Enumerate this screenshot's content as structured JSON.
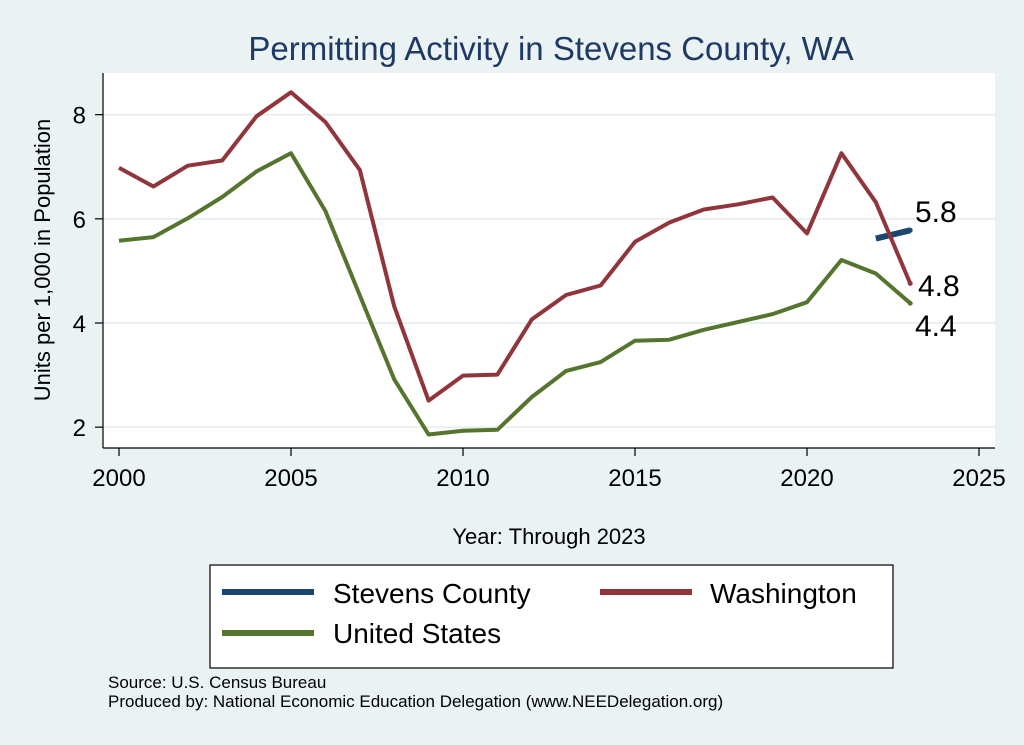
{
  "chart_data": {
    "type": "line",
    "title": "Permitting Activity in Stevens County, WA",
    "xlabel": "Year: Through 2023",
    "ylabel": "Units per 1,000 in Population",
    "xlim": [
      2000,
      2025
    ],
    "ylim": [
      1.6,
      8.8
    ],
    "xticks": [
      2000,
      2005,
      2010,
      2015,
      2020,
      2025
    ],
    "yticks": [
      2,
      4,
      6,
      8
    ],
    "grid": true,
    "legend_position": "bottom",
    "series": [
      {
        "name": "Stevens County",
        "color": "#1a476f",
        "points": [
          [
            2022,
            5.62
          ],
          [
            2023,
            5.78
          ]
        ],
        "end_label": "5.8"
      },
      {
        "name": "Washington",
        "color": "#90353b",
        "points": [
          [
            2000,
            6.98
          ],
          [
            2001,
            6.62
          ],
          [
            2002,
            7.02
          ],
          [
            2003,
            7.12
          ],
          [
            2004,
            7.97
          ],
          [
            2005,
            8.43
          ],
          [
            2006,
            7.86
          ],
          [
            2007,
            6.94
          ],
          [
            2008,
            4.32
          ],
          [
            2009,
            2.51
          ],
          [
            2010,
            2.99
          ],
          [
            2011,
            3.01
          ],
          [
            2012,
            4.07
          ],
          [
            2013,
            4.54
          ],
          [
            2014,
            4.72
          ],
          [
            2015,
            5.56
          ],
          [
            2016,
            5.93
          ],
          [
            2017,
            6.18
          ],
          [
            2018,
            6.28
          ],
          [
            2019,
            6.41
          ],
          [
            2020,
            5.72
          ],
          [
            2021,
            7.26
          ],
          [
            2022,
            6.32
          ],
          [
            2023,
            4.76
          ]
        ],
        "end_label": "4.8"
      },
      {
        "name": "United States",
        "color": "#55752f",
        "points": [
          [
            2000,
            5.58
          ],
          [
            2001,
            5.65
          ],
          [
            2002,
            6.01
          ],
          [
            2003,
            6.42
          ],
          [
            2004,
            6.91
          ],
          [
            2005,
            7.26
          ],
          [
            2006,
            6.15
          ],
          [
            2007,
            4.53
          ],
          [
            2008,
            2.92
          ],
          [
            2009,
            1.86
          ],
          [
            2010,
            1.93
          ],
          [
            2011,
            1.95
          ],
          [
            2012,
            2.58
          ],
          [
            2013,
            3.08
          ],
          [
            2014,
            3.25
          ],
          [
            2015,
            3.66
          ],
          [
            2016,
            3.68
          ],
          [
            2017,
            3.87
          ],
          [
            2018,
            4.02
          ],
          [
            2019,
            4.17
          ],
          [
            2020,
            4.4
          ],
          [
            2021,
            5.21
          ],
          [
            2022,
            4.95
          ],
          [
            2023,
            4.38
          ]
        ],
        "end_label": "4.4"
      }
    ],
    "notes": [
      "Source: U.S. Census Bureau",
      "Produced by: National Economic Education Delegation (www.NEEDelegation.org)"
    ]
  }
}
